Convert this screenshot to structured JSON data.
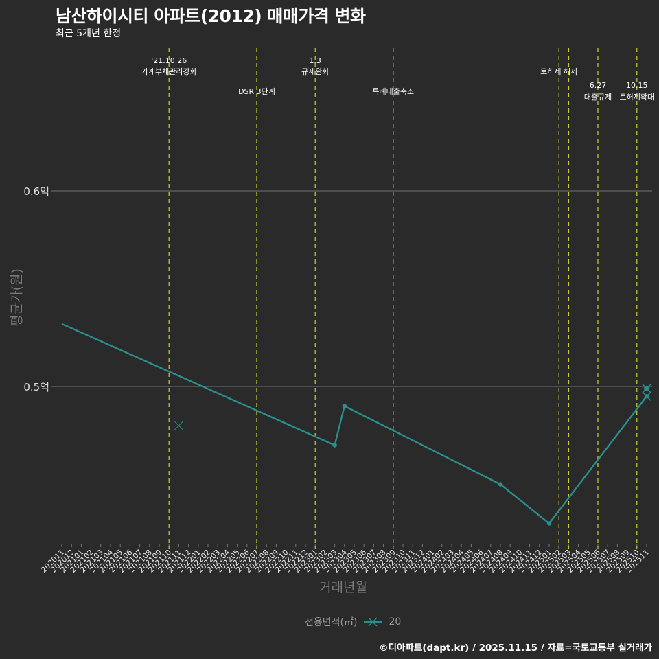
{
  "header": {
    "title": "남산하이시티 아파트(2012) 매매가격 변화",
    "subtitle": "최근 5개년 한정"
  },
  "axes": {
    "ylabel": "평균가(원)",
    "xlabel": "거래년월",
    "yticks": [
      {
        "label": "0.6억",
        "value": 0.6
      },
      {
        "label": "0.5억",
        "value": 0.5
      }
    ]
  },
  "legend": {
    "title": "전용면적(㎡)",
    "items": [
      {
        "label": "20",
        "color": "#2a8f8c"
      }
    ]
  },
  "footer": {
    "credit": "©디아파트(dapt.kr) / 2025.11.15 / 자료=국토교통부 실거래가"
  },
  "events": [
    {
      "month": "202110",
      "line1": "'21.10.26",
      "line2": "가계부채관리강화",
      "row": 0
    },
    {
      "month": "202207",
      "line1": "",
      "line2": "DSR 3단계",
      "row": 1
    },
    {
      "month": "202301",
      "line1": "1.3",
      "line2": "규제완화",
      "row": 0
    },
    {
      "month": "202309",
      "line1": "",
      "line2": "특례대출축소",
      "row": 1
    },
    {
      "month": "202502",
      "line1": "",
      "line2": "토허제 해제",
      "row": 0
    },
    {
      "month": "202503",
      "line1": "",
      "line2": "",
      "row": 0
    },
    {
      "month": "202506",
      "line1": "6.27",
      "line2": "대출규제",
      "row": 2
    },
    {
      "month": "202510",
      "line1": "10.15",
      "line2": "토허제확대",
      "row": 2
    }
  ],
  "colors": {
    "background": "#2b2a2a",
    "series": "#2a8f8c",
    "event_line": "#c8d42a",
    "grid": "#5a5a5a"
  },
  "chart_data": {
    "type": "line",
    "title": "남산하이시티 아파트(2012) 매매가격 변화",
    "subtitle": "최근 5개년 한정",
    "xlabel": "거래년월",
    "ylabel": "평균가(원)",
    "unit": "억",
    "ylim": [
      0.42,
      0.62
    ],
    "grid": true,
    "legend_position": "bottom",
    "categories": [
      "202011",
      "202012",
      "202101",
      "202102",
      "202103",
      "202104",
      "202105",
      "202106",
      "202107",
      "202108",
      "202109",
      "202110",
      "202111",
      "202112",
      "202201",
      "202202",
      "202203",
      "202204",
      "202205",
      "202206",
      "202207",
      "202208",
      "202209",
      "202210",
      "202211",
      "202212",
      "202301",
      "202302",
      "202303",
      "202304",
      "202305",
      "202306",
      "202307",
      "202308",
      "202309",
      "202310",
      "202311",
      "202312",
      "202401",
      "202402",
      "202403",
      "202404",
      "202405",
      "202406",
      "202407",
      "202408",
      "202409",
      "202410",
      "202411",
      "202412",
      "202501",
      "202502",
      "202503",
      "202504",
      "202505",
      "202506",
      "202507",
      "202508",
      "202509",
      "202510",
      "202511"
    ],
    "series": [
      {
        "name": "20",
        "points": [
          {
            "x": "202011",
            "y": 0.532
          },
          {
            "x": "202303",
            "y": 0.47
          },
          {
            "x": "202304",
            "y": 0.49
          },
          {
            "x": "202408",
            "y": 0.45
          },
          {
            "x": "202501",
            "y": 0.43
          },
          {
            "x": "202511",
            "y": 0.495
          }
        ],
        "extra_markers": [
          {
            "x": "202111",
            "y": 0.48,
            "shape": "cross"
          },
          {
            "x": "202511",
            "y": 0.499,
            "shape": "circle-cross"
          }
        ]
      }
    ],
    "annotations": [
      "'21.10.26 가계부채관리강화",
      "DSR 3단계",
      "1.3 규제완화",
      "특례대출축소",
      "토허제 해제",
      "6.27 대출규제",
      "10.15 토허제확대"
    ]
  }
}
